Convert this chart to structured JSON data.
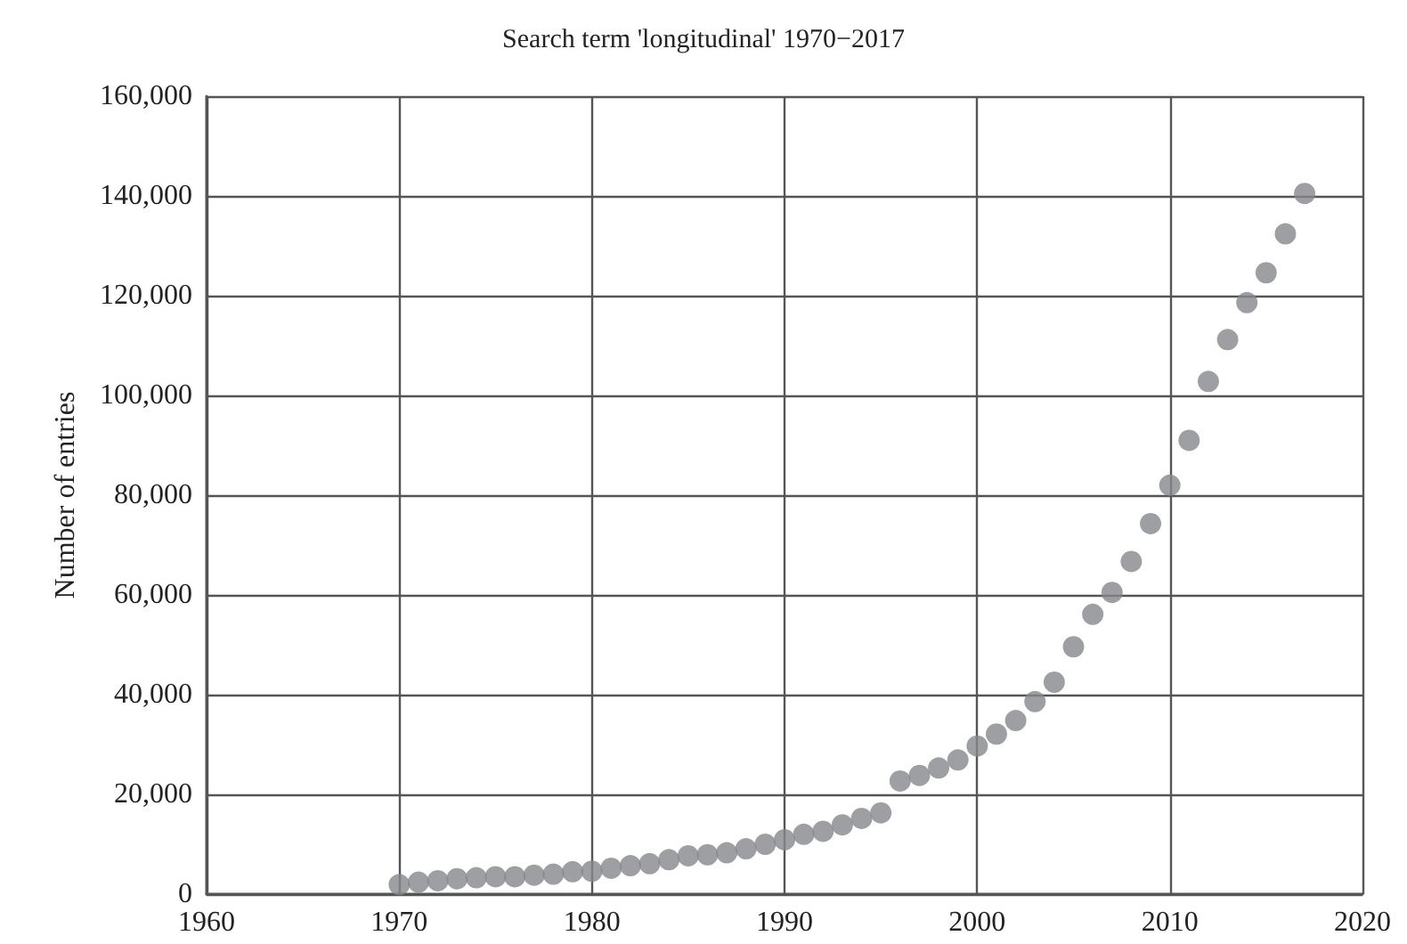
{
  "chart_data": {
    "type": "scatter",
    "title": "Search term 'longitudinal' 1970−2017",
    "ylabel": "Number of entries",
    "x": [
      1970,
      1971,
      1972,
      1973,
      1974,
      1975,
      1976,
      1977,
      1978,
      1979,
      1980,
      1981,
      1982,
      1983,
      1984,
      1985,
      1986,
      1987,
      1988,
      1989,
      1990,
      1991,
      1992,
      1993,
      1994,
      1995,
      1996,
      1997,
      1998,
      1999,
      2000,
      2001,
      2002,
      2003,
      2004,
      2005,
      2006,
      2007,
      2008,
      2009,
      2010,
      2011,
      2012,
      2013,
      2014,
      2015,
      2016,
      2017
    ],
    "values": [
      1900,
      2400,
      2700,
      3100,
      3300,
      3500,
      3500,
      3800,
      4000,
      4500,
      4600,
      5200,
      5700,
      6100,
      6900,
      7700,
      7900,
      8300,
      9100,
      10000,
      10900,
      12000,
      12600,
      13900,
      15200,
      16300,
      22700,
      23800,
      25300,
      26900,
      29700,
      32100,
      34800,
      38600,
      42500,
      49600,
      56100,
      60500,
      66700,
      74300,
      82000,
      91000,
      102800,
      111200,
      118600,
      124600,
      132400,
      140500
    ],
    "color": "#86878b",
    "marker": "circle",
    "grid": true,
    "xlim": [
      1960,
      2020
    ],
    "xticks": [
      1960,
      1970,
      1980,
      1990,
      2000,
      2010,
      2020
    ],
    "ylim": [
      0,
      160000
    ],
    "yticks": [
      0,
      {
        "value": 20000,
        "label": "20,000"
      },
      {
        "value": 40000,
        "label": "40,000"
      },
      {
        "value": 60000,
        "label": "60,000"
      },
      {
        "value": 80000,
        "label": "80,000"
      },
      {
        "value": 100000,
        "label": "100,000"
      },
      {
        "value": 120000,
        "label": "120,000"
      },
      {
        "value": 140000,
        "label": "140,000"
      },
      {
        "value": 160000,
        "label": "160,000"
      }
    ]
  }
}
